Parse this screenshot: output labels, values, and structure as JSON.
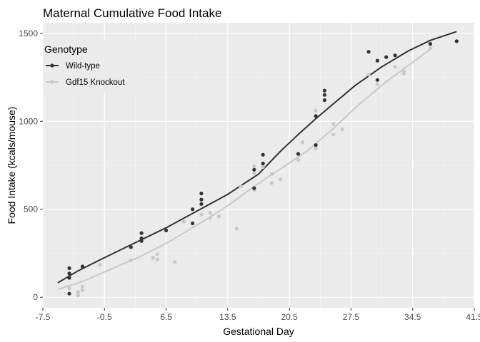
{
  "chart_data": {
    "type": "scatter",
    "title": "Maternal Cumulative Food Intake",
    "xlabel": "Gestational Day",
    "ylabel": "Food Intake (kcals/mouse)",
    "xlim": [
      -7.5,
      41.5
    ],
    "ylim": [
      -60,
      1560
    ],
    "x_ticks": [
      -7.5,
      -0.5,
      6.5,
      13.5,
      20.5,
      27.5,
      34.5,
      41.5
    ],
    "x_tick_labels": [
      "-7.5",
      "-0.5",
      "6.5",
      "13.5",
      "20.5",
      "27.5",
      "34.5",
      "41.5"
    ],
    "y_ticks": [
      0,
      500,
      1000,
      1500
    ],
    "y_tick_labels": [
      "0",
      "500",
      "1000",
      "1500"
    ],
    "grid": true,
    "legend": {
      "title": "Genotype",
      "position": "top-left"
    },
    "series": [
      {
        "name": "Wild-type",
        "color": "#333333",
        "points": [
          [
            -4.5,
            20
          ],
          [
            -4.5,
            110
          ],
          [
            -4.5,
            135
          ],
          [
            -4.5,
            165
          ],
          [
            -3,
            175
          ],
          [
            2.5,
            285
          ],
          [
            3.7,
            320
          ],
          [
            3.7,
            335
          ],
          [
            3.7,
            365
          ],
          [
            6.5,
            380
          ],
          [
            9.5,
            420
          ],
          [
            9.5,
            500
          ],
          [
            10.5,
            530
          ],
          [
            10.5,
            555
          ],
          [
            10.5,
            590
          ],
          [
            16.5,
            620
          ],
          [
            16.5,
            725
          ],
          [
            17.5,
            760
          ],
          [
            17.5,
            810
          ],
          [
            21.5,
            815
          ],
          [
            23.5,
            865
          ],
          [
            23.5,
            1030
          ],
          [
            24.5,
            1120
          ],
          [
            24.5,
            1150
          ],
          [
            24.5,
            1175
          ],
          [
            29.5,
            1395
          ],
          [
            30.5,
            1235
          ],
          [
            30.5,
            1345
          ],
          [
            31.5,
            1365
          ],
          [
            32.5,
            1375
          ],
          [
            36.5,
            1440
          ],
          [
            39.5,
            1455
          ]
        ],
        "smooth": [
          [
            -5.8,
            82
          ],
          [
            -3.5,
            150
          ],
          [
            -0.5,
            225
          ],
          [
            3,
            310
          ],
          [
            6.5,
            395
          ],
          [
            10,
            490
          ],
          [
            13.5,
            585
          ],
          [
            17,
            700
          ],
          [
            19.5,
            830
          ],
          [
            21.5,
            925
          ],
          [
            23.5,
            1015
          ],
          [
            25.5,
            1100
          ],
          [
            28,
            1205
          ],
          [
            31,
            1310
          ],
          [
            34,
            1400
          ],
          [
            36.5,
            1460
          ],
          [
            39.5,
            1510
          ]
        ]
      },
      {
        "name": "Gdf15 Knockout",
        "color": "#c8c8c8",
        "points": [
          [
            -4.5,
            50
          ],
          [
            -3.5,
            10
          ],
          [
            -3.5,
            30
          ],
          [
            -3,
            40
          ],
          [
            -3,
            60
          ],
          [
            -1,
            185
          ],
          [
            2.5,
            210
          ],
          [
            5,
            225
          ],
          [
            5.5,
            215
          ],
          [
            5.5,
            245
          ],
          [
            7.5,
            200
          ],
          [
            8.5,
            430
          ],
          [
            9.5,
            500
          ],
          [
            10.5,
            470
          ],
          [
            11.5,
            450
          ],
          [
            11.5,
            480
          ],
          [
            12.5,
            460
          ],
          [
            14.5,
            390
          ],
          [
            15,
            630
          ],
          [
            16.5,
            610
          ],
          [
            16.5,
            705
          ],
          [
            16.5,
            745
          ],
          [
            17.5,
            740
          ],
          [
            18.5,
            650
          ],
          [
            18.5,
            700
          ],
          [
            19.5,
            670
          ],
          [
            21.5,
            780
          ],
          [
            22,
            880
          ],
          [
            23.5,
            845
          ],
          [
            23.5,
            1060
          ],
          [
            25.5,
            925
          ],
          [
            25.5,
            985
          ],
          [
            26.5,
            955
          ],
          [
            29.5,
            1265
          ],
          [
            30.5,
            1210
          ],
          [
            32.5,
            1310
          ],
          [
            33.5,
            1270
          ],
          [
            33.5,
            1285
          ],
          [
            36.5,
            1415
          ],
          [
            36.5,
            1440
          ]
        ],
        "smooth": [
          [
            -5.8,
            45
          ],
          [
            -3,
            90
          ],
          [
            0,
            155
          ],
          [
            3.5,
            230
          ],
          [
            7,
            320
          ],
          [
            10.5,
            425
          ],
          [
            13.5,
            520
          ],
          [
            16.5,
            630
          ],
          [
            19.5,
            730
          ],
          [
            22.5,
            830
          ],
          [
            25.5,
            960
          ],
          [
            28.5,
            1100
          ],
          [
            31.5,
            1225
          ],
          [
            34.5,
            1335
          ],
          [
            36.5,
            1410
          ]
        ]
      }
    ]
  }
}
